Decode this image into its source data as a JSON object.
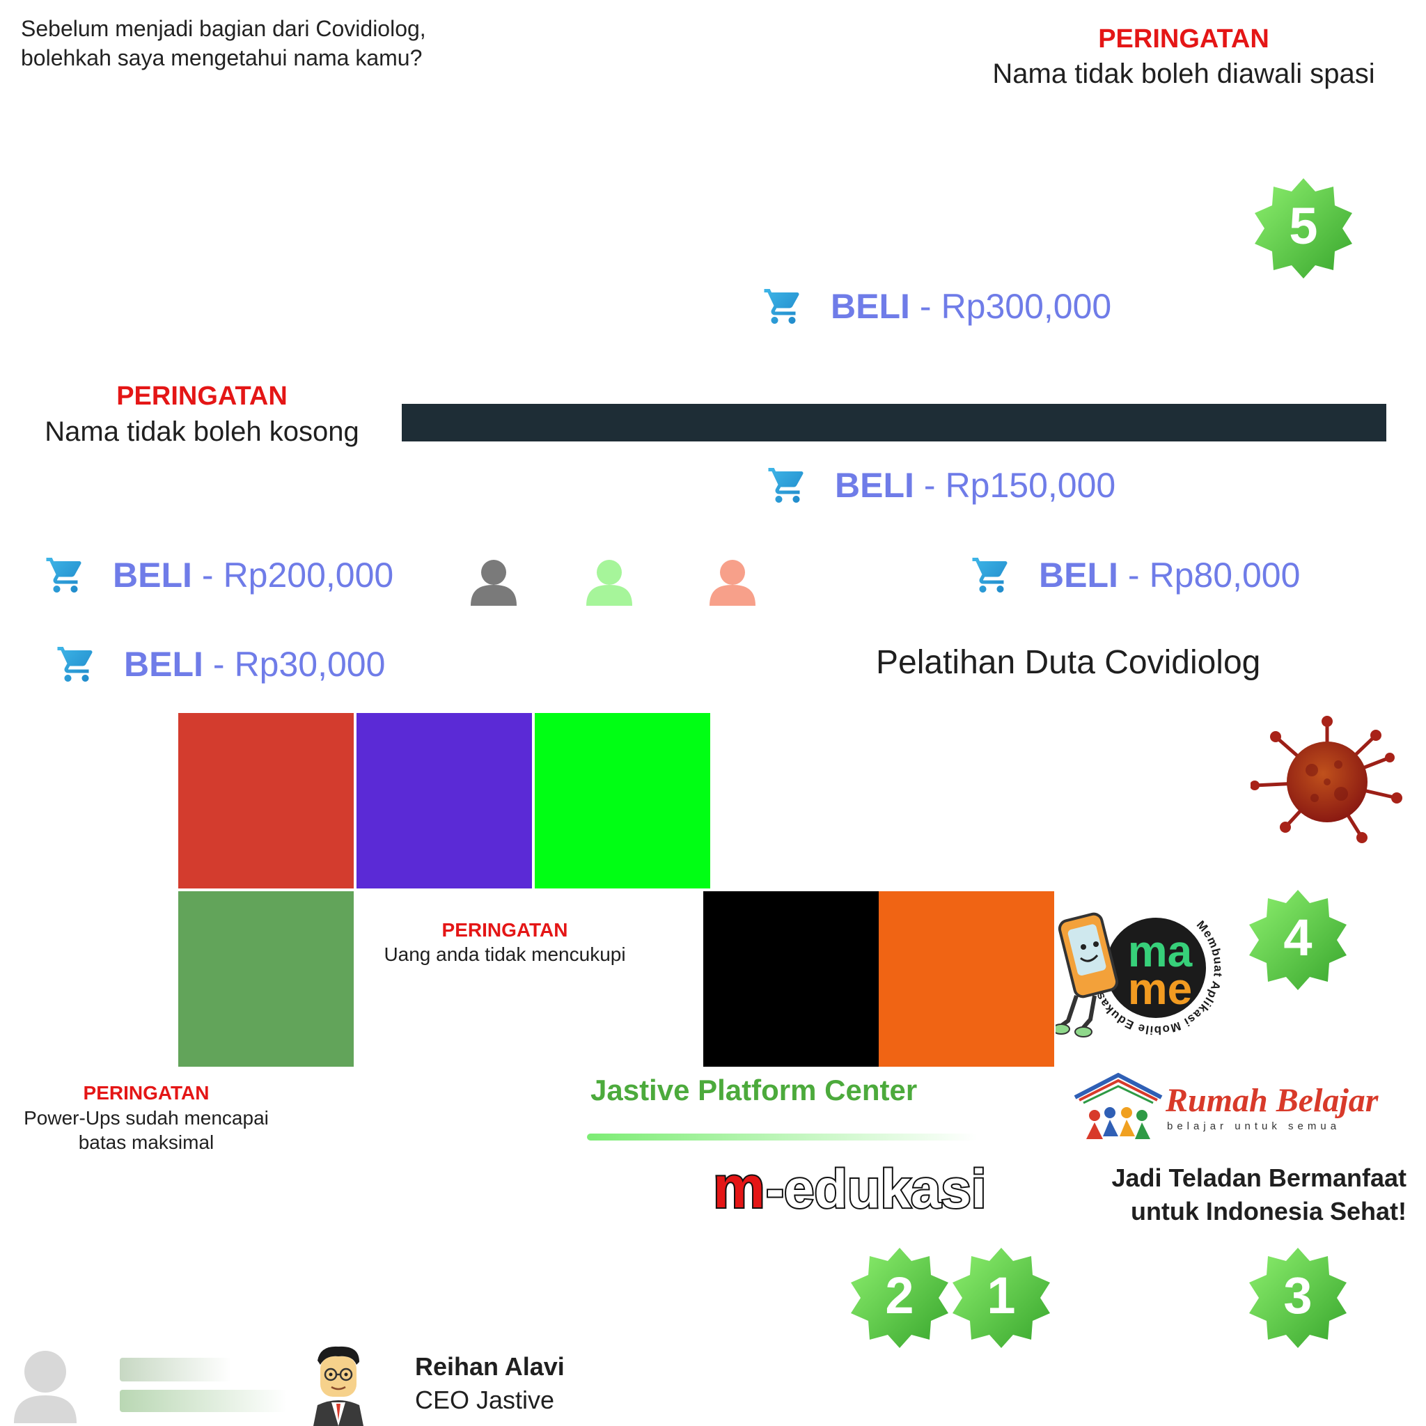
{
  "prompt": {
    "line1": "Sebelum menjadi bagian dari Covidiolog,",
    "line2": "bolehkah saya mengetahui nama kamu?"
  },
  "warnings": {
    "leading_space": {
      "title": "PERINGATAN",
      "message": "Nama tidak boleh diawali spasi"
    },
    "empty_name": {
      "title": "PERINGATAN",
      "message": "Nama tidak boleh kosong"
    },
    "no_money": {
      "title": "PERINGATAN",
      "message": "Uang anda tidak mencukupi"
    },
    "powerups_max": {
      "title": "PERINGATAN",
      "line1": "Power-Ups sudah mencapai",
      "line2": "batas maksimal"
    }
  },
  "name_input": {
    "value": ""
  },
  "shop": [
    {
      "label": "BELI",
      "sep": "-",
      "price": "Rp300,000"
    },
    {
      "label": "BELI",
      "sep": "-",
      "price": "Rp150,000"
    },
    {
      "label": "BELI",
      "sep": "-",
      "price": "Rp200,000"
    },
    {
      "label": "BELI",
      "sep": "-",
      "price": "Rp80,000"
    },
    {
      "label": "BELI",
      "sep": "-",
      "price": "Rp30,000"
    }
  ],
  "avatar_colors": [
    "#7a7a7a",
    "#a6f59a",
    "#f7a08a"
  ],
  "training_title": "Pelatihan Duta Covidiolog",
  "color_tiles": {
    "row1": [
      "#d33c2e",
      "#5b2ad6",
      "#00ff14"
    ],
    "row2_left": "#62a45a",
    "row2_right": [
      "#000000",
      "#f06414"
    ]
  },
  "badges": [
    "5",
    "4",
    "3",
    "2",
    "1"
  ],
  "logos": {
    "mame_ring": "Membuat Aplikasi Mobile Edukasi!",
    "mame_top": "ma",
    "mame_bottom": "me",
    "rumah_belajar": "Rumah Belajar",
    "rumah_belajar_sub": "belajar untuk semua",
    "medukasi_m": "m",
    "medukasi_rest": "-edukasi"
  },
  "jastive_title": "Jastive Platform Center",
  "tagline": {
    "line1": "Jadi Teladan Bermanfaat",
    "line2": "untuk Indonesia Sehat!"
  },
  "ceo": {
    "name": "Reihan Alavi",
    "role": "CEO Jastive"
  },
  "colors": {
    "accent": "#6f7ce8",
    "warning": "#e41616",
    "badge_green": "#5fd14b"
  },
  "icons": [
    "cart-icon",
    "person-icon",
    "virus-icon",
    "star-badge-icon",
    "ceo-avatar-icon"
  ]
}
